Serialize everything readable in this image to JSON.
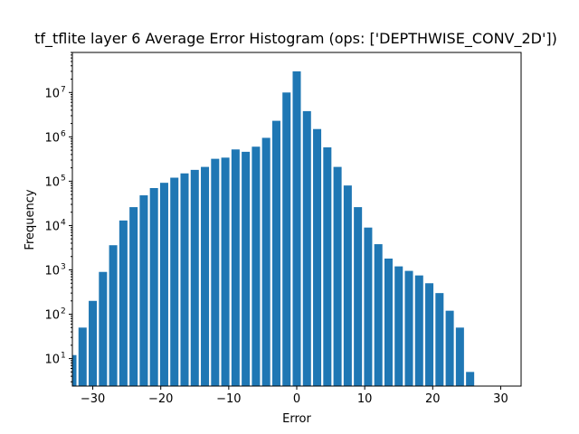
{
  "chart_data": {
    "type": "bar",
    "title": "tf_tflite layer 6 Average Error Histogram (ops: ['DEPTHWISE_CONV_2D'])",
    "xlabel": "Error",
    "ylabel": "Frequency",
    "y_scale": "log",
    "xlim": [
      -33,
      33
    ],
    "ylim": [
      2.4,
      80000000
    ],
    "grid": false,
    "legend": "none",
    "bar_color": "#1f77b4",
    "bar_width": 1.2,
    "x_ticks": [
      -30,
      -20,
      -10,
      0,
      10,
      20,
      30
    ],
    "x_tick_labels": [
      "−30",
      "−20",
      "−10",
      "0",
      "10",
      "20",
      "30"
    ],
    "y_ticks": [
      10,
      100,
      1000,
      10000,
      100000,
      1000000,
      10000000
    ],
    "y_tick_labels": [
      {
        "base": "10",
        "exp": "1"
      },
      {
        "base": "10",
        "exp": "2"
      },
      {
        "base": "10",
        "exp": "3"
      },
      {
        "base": "10",
        "exp": "4"
      },
      {
        "base": "10",
        "exp": "5"
      },
      {
        "base": "10",
        "exp": "6"
      },
      {
        "base": "10",
        "exp": "7"
      }
    ],
    "x": [
      -33,
      -31.5,
      -30,
      -28.5,
      -27,
      -25.5,
      -24,
      -22.5,
      -21,
      -19.5,
      -18,
      -16.5,
      -15,
      -13.5,
      -12,
      -10.5,
      -9,
      -7.5,
      -6,
      -4.5,
      -3,
      -1.5,
      0,
      1.5,
      3,
      4.5,
      6,
      7.5,
      9,
      10.5,
      12,
      13.5,
      15,
      16.5,
      18,
      19.5,
      21,
      22.5,
      24,
      25.5
    ],
    "values": [
      12,
      50,
      200,
      900,
      3600,
      13000,
      26000,
      48000,
      70000,
      92000,
      120000,
      150000,
      180000,
      210000,
      320000,
      340000,
      520000,
      460000,
      600000,
      950000,
      2300000,
      10000000,
      30000000,
      3800000,
      1500000,
      580000,
      210000,
      80000,
      26000,
      9000,
      3800,
      1800,
      1200,
      950,
      750,
      500,
      300,
      120,
      50,
      5
    ]
  }
}
